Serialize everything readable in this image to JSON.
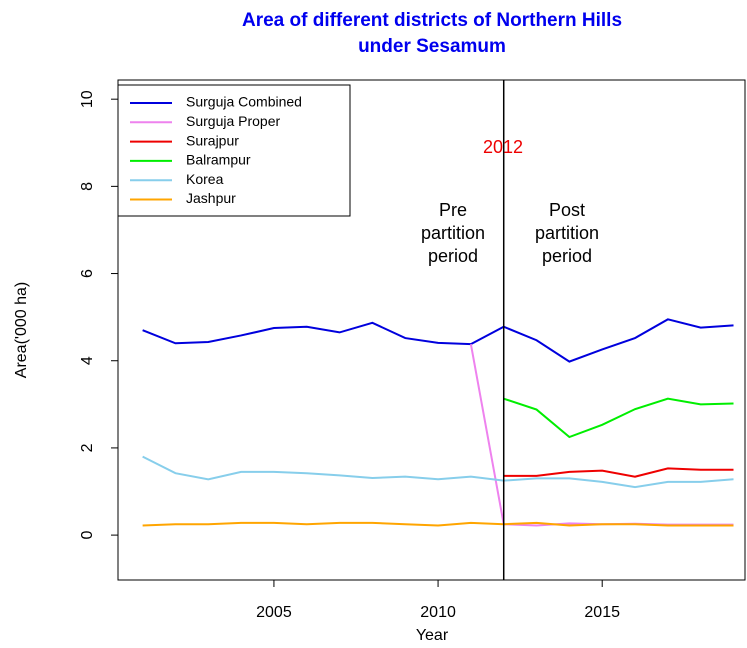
{
  "chart_data": {
    "type": "line",
    "title": [
      "Area of different districts of Northern Hills",
      "under Sesamum"
    ],
    "x_label": "Year",
    "y_label": "Area('000 ha)",
    "x": [
      2001,
      2002,
      2003,
      2004,
      2005,
      2006,
      2007,
      2008,
      2009,
      2010,
      2011,
      2012,
      2013,
      2014,
      2015,
      2016,
      2017,
      2018,
      2019
    ],
    "series": [
      {
        "name": "Surguja Combined",
        "color": "#0000dd",
        "values": [
          4.7,
          4.4,
          4.43,
          4.58,
          4.75,
          4.78,
          4.65,
          4.87,
          4.52,
          4.41,
          4.38,
          4.78,
          4.47,
          3.98,
          4.26,
          4.52,
          4.95,
          4.76,
          4.81
        ]
      },
      {
        "name": "Surguja Proper",
        "color": "#ee82ee",
        "values": [
          null,
          null,
          null,
          null,
          null,
          null,
          null,
          null,
          null,
          null,
          4.38,
          0.25,
          0.22,
          0.27,
          0.25,
          0.26,
          0.24,
          0.24,
          0.24
        ]
      },
      {
        "name": "Surajpur",
        "color": "#ee0000",
        "values": [
          null,
          null,
          null,
          null,
          null,
          null,
          null,
          null,
          null,
          null,
          null,
          1.36,
          1.36,
          1.45,
          1.48,
          1.34,
          1.53,
          1.5,
          1.5
        ]
      },
      {
        "name": "Balrampur",
        "color": "#00ee00",
        "values": [
          null,
          null,
          null,
          null,
          null,
          null,
          null,
          null,
          null,
          null,
          null,
          3.13,
          2.88,
          2.25,
          2.53,
          2.89,
          3.13,
          3.0,
          3.02
        ]
      },
      {
        "name": "Korea",
        "color": "#87ceeb",
        "values": [
          1.8,
          1.42,
          1.28,
          1.45,
          1.45,
          1.42,
          1.37,
          1.31,
          1.34,
          1.28,
          1.34,
          1.25,
          1.3,
          1.3,
          1.22,
          1.1,
          1.22,
          1.22,
          1.28
        ]
      },
      {
        "name": "Jashpur",
        "color": "#ffa500",
        "values": [
          0.22,
          0.25,
          0.25,
          0.28,
          0.28,
          0.25,
          0.28,
          0.28,
          0.25,
          0.22,
          0.28,
          0.25,
          0.28,
          0.22,
          0.25,
          0.25,
          0.22,
          0.22,
          0.22
        ]
      }
    ],
    "vline": 2012,
    "annotations": [
      {
        "text": "2012",
        "color": "#ee0000"
      },
      {
        "text": [
          "Pre",
          "partition",
          "period"
        ]
      },
      {
        "text": [
          "Post",
          "partition",
          "period"
        ]
      }
    ],
    "xlim": [
      2000.25,
      2019.35
    ],
    "ylim": [
      -1.03,
      10.44
    ],
    "xticks": [
      2005,
      2010,
      2015
    ],
    "yticks": [
      0,
      2,
      4,
      6,
      8,
      10
    ],
    "legend": "top-left"
  }
}
